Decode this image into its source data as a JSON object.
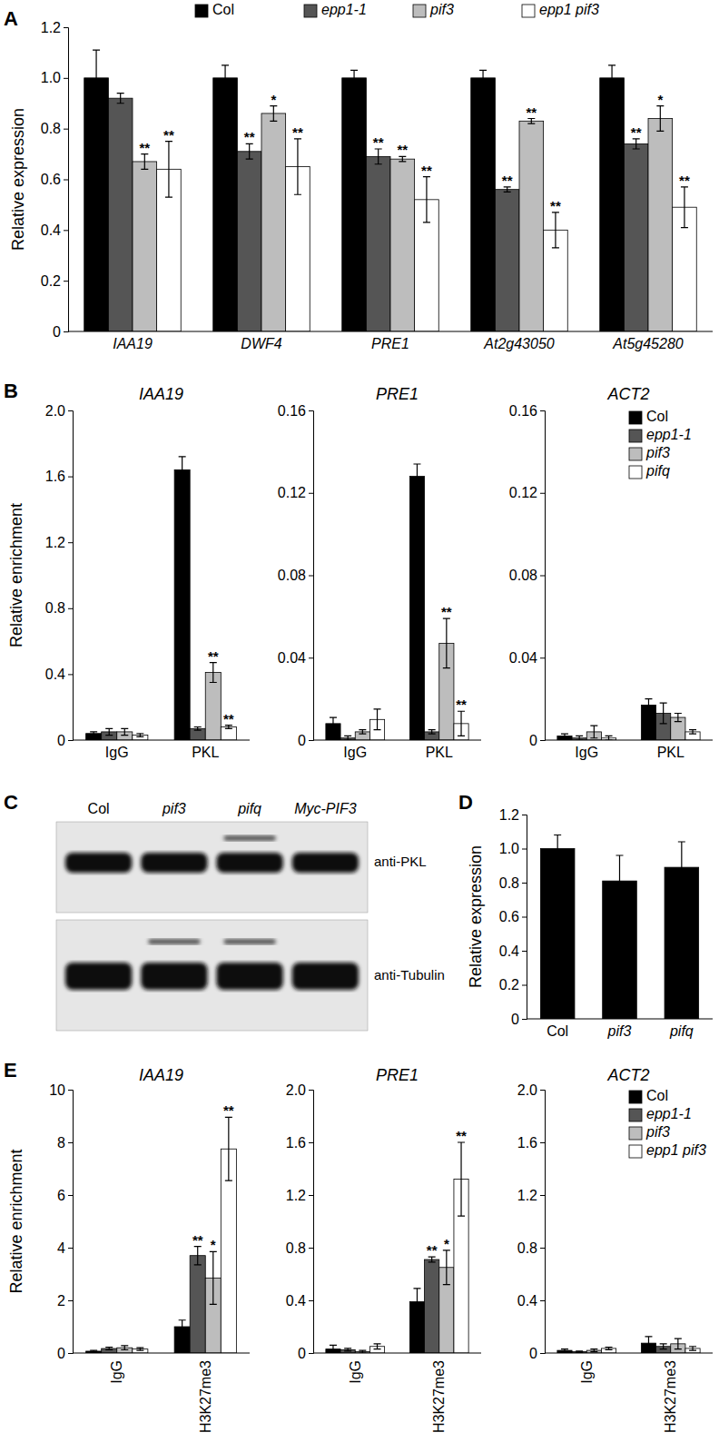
{
  "chart_data": [
    {
      "type": "bar",
      "panel": "A",
      "y_label": "Relative expression",
      "legend": "top",
      "categories": [
        "IAA19",
        "DWF4",
        "PRE1",
        "At2g43050",
        "At5g45280"
      ],
      "ylim": [
        0,
        1.2
      ],
      "yticks": [
        0,
        0.2,
        0.4,
        0.6,
        0.8,
        {
          "value": 1,
          "label": "1.0"
        },
        1.2
      ],
      "series": [
        {
          "name": "Col",
          "color": "#000000",
          "values": [
            1.0,
            1.0,
            1.0,
            1.0,
            1.0
          ],
          "errors": [
            0.11,
            0.05,
            0.03,
            0.03,
            0.05
          ],
          "significance": [
            null,
            null,
            null,
            null,
            null
          ]
        },
        {
          "name": "epp1-1",
          "color": "#555555",
          "values": [
            0.92,
            0.71,
            0.69,
            0.56,
            0.74
          ],
          "errors": [
            0.02,
            0.03,
            0.03,
            0.01,
            0.02
          ],
          "significance": [
            null,
            "**",
            "**",
            "**",
            "**"
          ]
        },
        {
          "name": "pif3",
          "color": "#bdbdbd",
          "values": [
            0.67,
            0.86,
            0.68,
            0.83,
            0.84
          ],
          "errors": [
            0.03,
            0.03,
            0.01,
            0.01,
            0.05
          ],
          "significance": [
            "**",
            "*",
            "**",
            "**",
            "*"
          ]
        },
        {
          "name": "epp1 pif3",
          "color": "#ffffff",
          "values": [
            0.64,
            0.65,
            0.52,
            0.4,
            0.49
          ],
          "errors": [
            0.11,
            0.11,
            0.09,
            0.07,
            0.08
          ],
          "significance": [
            "**",
            "**",
            "**",
            "**",
            "**"
          ]
        }
      ]
    },
    {
      "type": "bar",
      "panel": "B",
      "title": "IAA19",
      "y_label": "Relative enrichment",
      "categories": [
        "IgG",
        "PKL"
      ],
      "ylim": [
        0,
        2
      ],
      "yticks": [
        0,
        0.4,
        0.8,
        1.2,
        1.6,
        {
          "value": 2,
          "label": "2.0"
        }
      ],
      "series": [
        {
          "name": "Col",
          "color": "#000000",
          "values": [
            0.04,
            1.64
          ],
          "errors": [
            0.01,
            0.08
          ],
          "significance": [
            null,
            null
          ]
        },
        {
          "name": "epp1-1",
          "color": "#555555",
          "values": [
            0.05,
            0.07
          ],
          "errors": [
            0.02,
            0.01
          ],
          "significance": [
            null,
            null
          ]
        },
        {
          "name": "pif3",
          "color": "#bdbdbd",
          "values": [
            0.05,
            0.41
          ],
          "errors": [
            0.02,
            0.06
          ],
          "significance": [
            null,
            "**"
          ]
        },
        {
          "name": "pifq",
          "color": "#ffffff",
          "values": [
            0.03,
            0.08
          ],
          "errors": [
            0.01,
            0.01
          ],
          "significance": [
            null,
            "**"
          ]
        }
      ]
    },
    {
      "type": "bar",
      "title": "PRE1",
      "categories": [
        "IgG",
        "PKL"
      ],
      "ylim": [
        0,
        0.16
      ],
      "yticks": [
        0,
        0.04,
        0.08,
        0.12,
        0.16
      ],
      "series": [
        {
          "name": "Col",
          "color": "#000000",
          "values": [
            0.008,
            0.128
          ],
          "errors": [
            0.003,
            0.006
          ],
          "significance": [
            null,
            null
          ]
        },
        {
          "name": "epp1-1",
          "color": "#555555",
          "values": [
            0.001,
            0.004
          ],
          "errors": [
            0.001,
            0.001
          ],
          "significance": [
            null,
            null
          ]
        },
        {
          "name": "pif3",
          "color": "#bdbdbd",
          "values": [
            0.004,
            0.047
          ],
          "errors": [
            0.001,
            0.012
          ],
          "significance": [
            null,
            "**"
          ]
        },
        {
          "name": "pifq",
          "color": "#ffffff",
          "values": [
            0.01,
            0.008
          ],
          "errors": [
            0.005,
            0.006
          ],
          "significance": [
            null,
            "**"
          ]
        }
      ]
    },
    {
      "type": "bar",
      "title": "ACT2",
      "legend": "upper right",
      "categories": [
        "IgG",
        "PKL"
      ],
      "ylim": [
        0,
        0.16
      ],
      "yticks": [
        0,
        0.04,
        0.08,
        0.12,
        0.16
      ],
      "series": [
        {
          "name": "Col",
          "color": "#000000",
          "values": [
            0.002,
            0.017
          ],
          "errors": [
            0.001,
            0.003
          ],
          "significance": [
            null,
            null
          ]
        },
        {
          "name": "epp1-1",
          "color": "#555555",
          "values": [
            0.001,
            0.013
          ],
          "errors": [
            0.001,
            0.005
          ],
          "significance": [
            null,
            null
          ]
        },
        {
          "name": "pif3",
          "color": "#bdbdbd",
          "values": [
            0.004,
            0.011
          ],
          "errors": [
            0.003,
            0.002
          ],
          "significance": [
            null,
            null
          ]
        },
        {
          "name": "pifq",
          "color": "#ffffff",
          "values": [
            0.001,
            0.004
          ],
          "errors": [
            0.001,
            0.001
          ],
          "significance": [
            null,
            null
          ]
        }
      ]
    },
    {
      "type": "blot",
      "panel": "C",
      "lanes": [
        "Col",
        "pif3",
        "pifq",
        "Myc-PIF3"
      ],
      "rows": [
        "anti-PKL",
        "anti-Tubulin"
      ]
    },
    {
      "type": "bar",
      "panel": "D",
      "y_label": "Relative expression",
      "categories": [
        "Col",
        "pif3",
        "pifq"
      ],
      "values": [
        1.0,
        0.81,
        0.89
      ],
      "errors": [
        0.08,
        0.15,
        0.15
      ],
      "color": "#000000",
      "ylim": [
        0,
        1.2
      ],
      "yticks": [
        0,
        0.2,
        0.4,
        0.6,
        0.8,
        {
          "value": 1,
          "label": "1.0"
        },
        1.2
      ]
    },
    {
      "type": "bar",
      "panel": "E",
      "title": "IAA19",
      "y_label": "Relative enrichment",
      "categories": [
        "IgG",
        "H3K27me3"
      ],
      "ylim": [
        0,
        10
      ],
      "yticks": [
        0,
        2,
        4,
        6,
        8,
        10
      ],
      "series": [
        {
          "name": "Col",
          "color": "#000000",
          "values": [
            0.07,
            1.0
          ],
          "errors": [
            0.03,
            0.25
          ],
          "significance": [
            null,
            null
          ]
        },
        {
          "name": "epp1-1",
          "color": "#555555",
          "values": [
            0.17,
            3.7
          ],
          "errors": [
            0.05,
            0.35
          ],
          "significance": [
            null,
            "**"
          ]
        },
        {
          "name": "pif3",
          "color": "#bdbdbd",
          "values": [
            0.2,
            2.85
          ],
          "errors": [
            0.08,
            1.0
          ],
          "significance": [
            null,
            "*"
          ]
        },
        {
          "name": "epp1 pif3",
          "color": "#ffffff",
          "values": [
            0.15,
            7.75
          ],
          "errors": [
            0.05,
            1.2
          ],
          "significance": [
            null,
            "**"
          ]
        }
      ]
    },
    {
      "type": "bar",
      "title": "PRE1",
      "categories": [
        "IgG",
        "H3K27me3"
      ],
      "ylim": [
        0,
        2
      ],
      "yticks": [
        0,
        0.4,
        0.8,
        1.2,
        1.6,
        {
          "value": 2,
          "label": "2.0"
        }
      ],
      "series": [
        {
          "name": "Col",
          "color": "#000000",
          "values": [
            0.03,
            0.39
          ],
          "errors": [
            0.03,
            0.1
          ],
          "significance": [
            null,
            null
          ]
        },
        {
          "name": "epp1-1",
          "color": "#555555",
          "values": [
            0.025,
            0.71
          ],
          "errors": [
            0.01,
            0.02
          ],
          "significance": [
            null,
            "**"
          ]
        },
        {
          "name": "pif3",
          "color": "#bdbdbd",
          "values": [
            0.01,
            0.65
          ],
          "errors": [
            0.01,
            0.13
          ],
          "significance": [
            null,
            "*"
          ]
        },
        {
          "name": "epp1 pif3",
          "color": "#ffffff",
          "values": [
            0.05,
            1.32
          ],
          "errors": [
            0.02,
            0.28
          ],
          "significance": [
            null,
            "**"
          ]
        }
      ]
    },
    {
      "type": "bar",
      "title": "ACT2",
      "legend": "upper right",
      "categories": [
        "IgG",
        "H3K27me3"
      ],
      "ylim": [
        0,
        2
      ],
      "yticks": [
        0,
        0.4,
        0.8,
        1.2,
        1.6,
        {
          "value": 2,
          "label": "2.0"
        }
      ],
      "series": [
        {
          "name": "Col",
          "color": "#000000",
          "values": [
            0.02,
            0.075
          ],
          "errors": [
            0.01,
            0.05
          ],
          "significance": [
            null,
            null
          ]
        },
        {
          "name": "epp1-1",
          "color": "#555555",
          "values": [
            0.01,
            0.05
          ],
          "errors": [
            0.005,
            0.02
          ],
          "significance": [
            null,
            null
          ]
        },
        {
          "name": "pif3",
          "color": "#bdbdbd",
          "values": [
            0.02,
            0.07
          ],
          "errors": [
            0.01,
            0.04
          ],
          "significance": [
            null,
            null
          ]
        },
        {
          "name": "epp1 pif3",
          "color": "#ffffff",
          "values": [
            0.035,
            0.035
          ],
          "errors": [
            0.01,
            0.015
          ],
          "significance": [
            null,
            null
          ]
        }
      ]
    }
  ]
}
